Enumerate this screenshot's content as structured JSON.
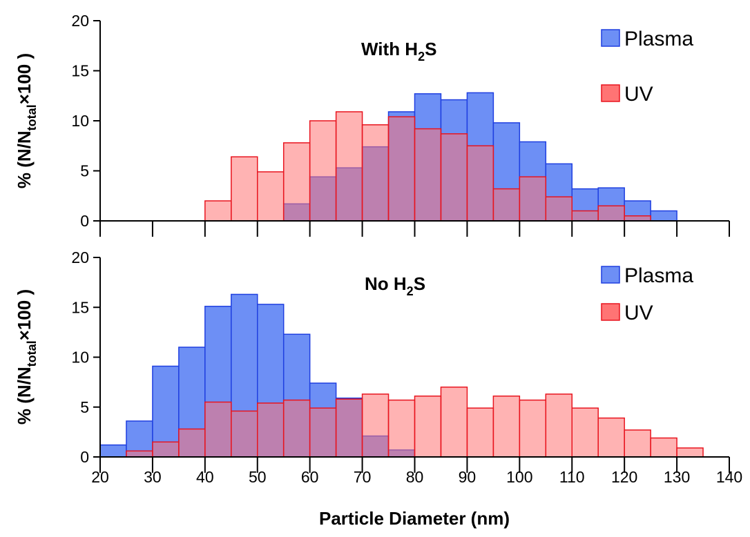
{
  "chart_data": [
    {
      "type": "bar",
      "title_main": "With H",
      "title_sub": "2",
      "title_end": "S",
      "ylabel": "% (N/N",
      "ylabel_sub": "total",
      "ylabel_end": "×100 )",
      "ylim": [
        0,
        20
      ],
      "yticks": [
        "0",
        "5",
        "10",
        "15",
        "20"
      ],
      "bin_width": 5,
      "series": [
        {
          "name": "Plasma",
          "color": "#6d8ff5",
          "edge": "#1f3fe0",
          "bins": [
            [
              55,
              1.7
            ],
            [
              60,
              4.4
            ],
            [
              65,
              5.3
            ],
            [
              70,
              7.4
            ],
            [
              75,
              10.9
            ],
            [
              80,
              12.7
            ],
            [
              85,
              12.1
            ],
            [
              90,
              12.8
            ],
            [
              95,
              9.8
            ],
            [
              100,
              7.9
            ],
            [
              105,
              5.7
            ],
            [
              110,
              3.2
            ],
            [
              115,
              3.3
            ],
            [
              120,
              2.0
            ],
            [
              125,
              1.0
            ]
          ]
        },
        {
          "name": "UV",
          "color": "#ff7474",
          "edge": "#e8141e",
          "bins": [
            [
              40,
              2.0
            ],
            [
              45,
              6.4
            ],
            [
              50,
              4.9
            ],
            [
              55,
              7.8
            ],
            [
              60,
              10.0
            ],
            [
              65,
              10.9
            ],
            [
              70,
              9.6
            ],
            [
              75,
              10.4
            ],
            [
              80,
              9.2
            ],
            [
              85,
              8.7
            ],
            [
              90,
              7.5
            ],
            [
              95,
              3.2
            ],
            [
              100,
              4.4
            ],
            [
              105,
              2.4
            ],
            [
              110,
              1.0
            ],
            [
              115,
              1.5
            ],
            [
              120,
              0.5
            ]
          ]
        }
      ]
    },
    {
      "type": "bar",
      "title_main": "No H",
      "title_sub": "2",
      "title_end": "S",
      "ylabel": "% (N/N",
      "ylabel_sub": "total",
      "ylabel_end": "×100 )",
      "ylim": [
        0,
        20
      ],
      "yticks": [
        "0",
        "5",
        "10",
        "15",
        "20"
      ],
      "bin_width": 5,
      "series": [
        {
          "name": "Plasma",
          "color": "#6d8ff5",
          "edge": "#1f3fe0",
          "bins": [
            [
              20,
              1.2
            ],
            [
              25,
              3.6
            ],
            [
              30,
              9.1
            ],
            [
              35,
              11.0
            ],
            [
              40,
              15.1
            ],
            [
              45,
              16.3
            ],
            [
              50,
              15.3
            ],
            [
              55,
              12.3
            ],
            [
              60,
              7.4
            ],
            [
              65,
              5.9
            ],
            [
              70,
              2.1
            ],
            [
              75,
              0.7
            ]
          ]
        },
        {
          "name": "UV",
          "color": "#ff7474",
          "edge": "#e8141e",
          "bins": [
            [
              25,
              0.6
            ],
            [
              30,
              1.5
            ],
            [
              35,
              2.8
            ],
            [
              40,
              5.5
            ],
            [
              45,
              4.6
            ],
            [
              50,
              5.4
            ],
            [
              55,
              5.7
            ],
            [
              60,
              4.9
            ],
            [
              65,
              5.8
            ],
            [
              70,
              6.3
            ],
            [
              75,
              5.7
            ],
            [
              80,
              6.1
            ],
            [
              85,
              7.0
            ],
            [
              90,
              4.9
            ],
            [
              95,
              6.1
            ],
            [
              100,
              5.7
            ],
            [
              105,
              6.3
            ],
            [
              110,
              4.9
            ],
            [
              115,
              3.9
            ],
            [
              120,
              2.7
            ],
            [
              125,
              1.9
            ],
            [
              130,
              0.9
            ]
          ]
        }
      ]
    }
  ],
  "x_axis": {
    "label": "Particle Diameter (nm)",
    "xlim": [
      20,
      140
    ],
    "ticks": [
      "20",
      "30",
      "40",
      "50",
      "60",
      "70",
      "80",
      "90",
      "100",
      "110",
      "120",
      "130",
      "140"
    ]
  }
}
